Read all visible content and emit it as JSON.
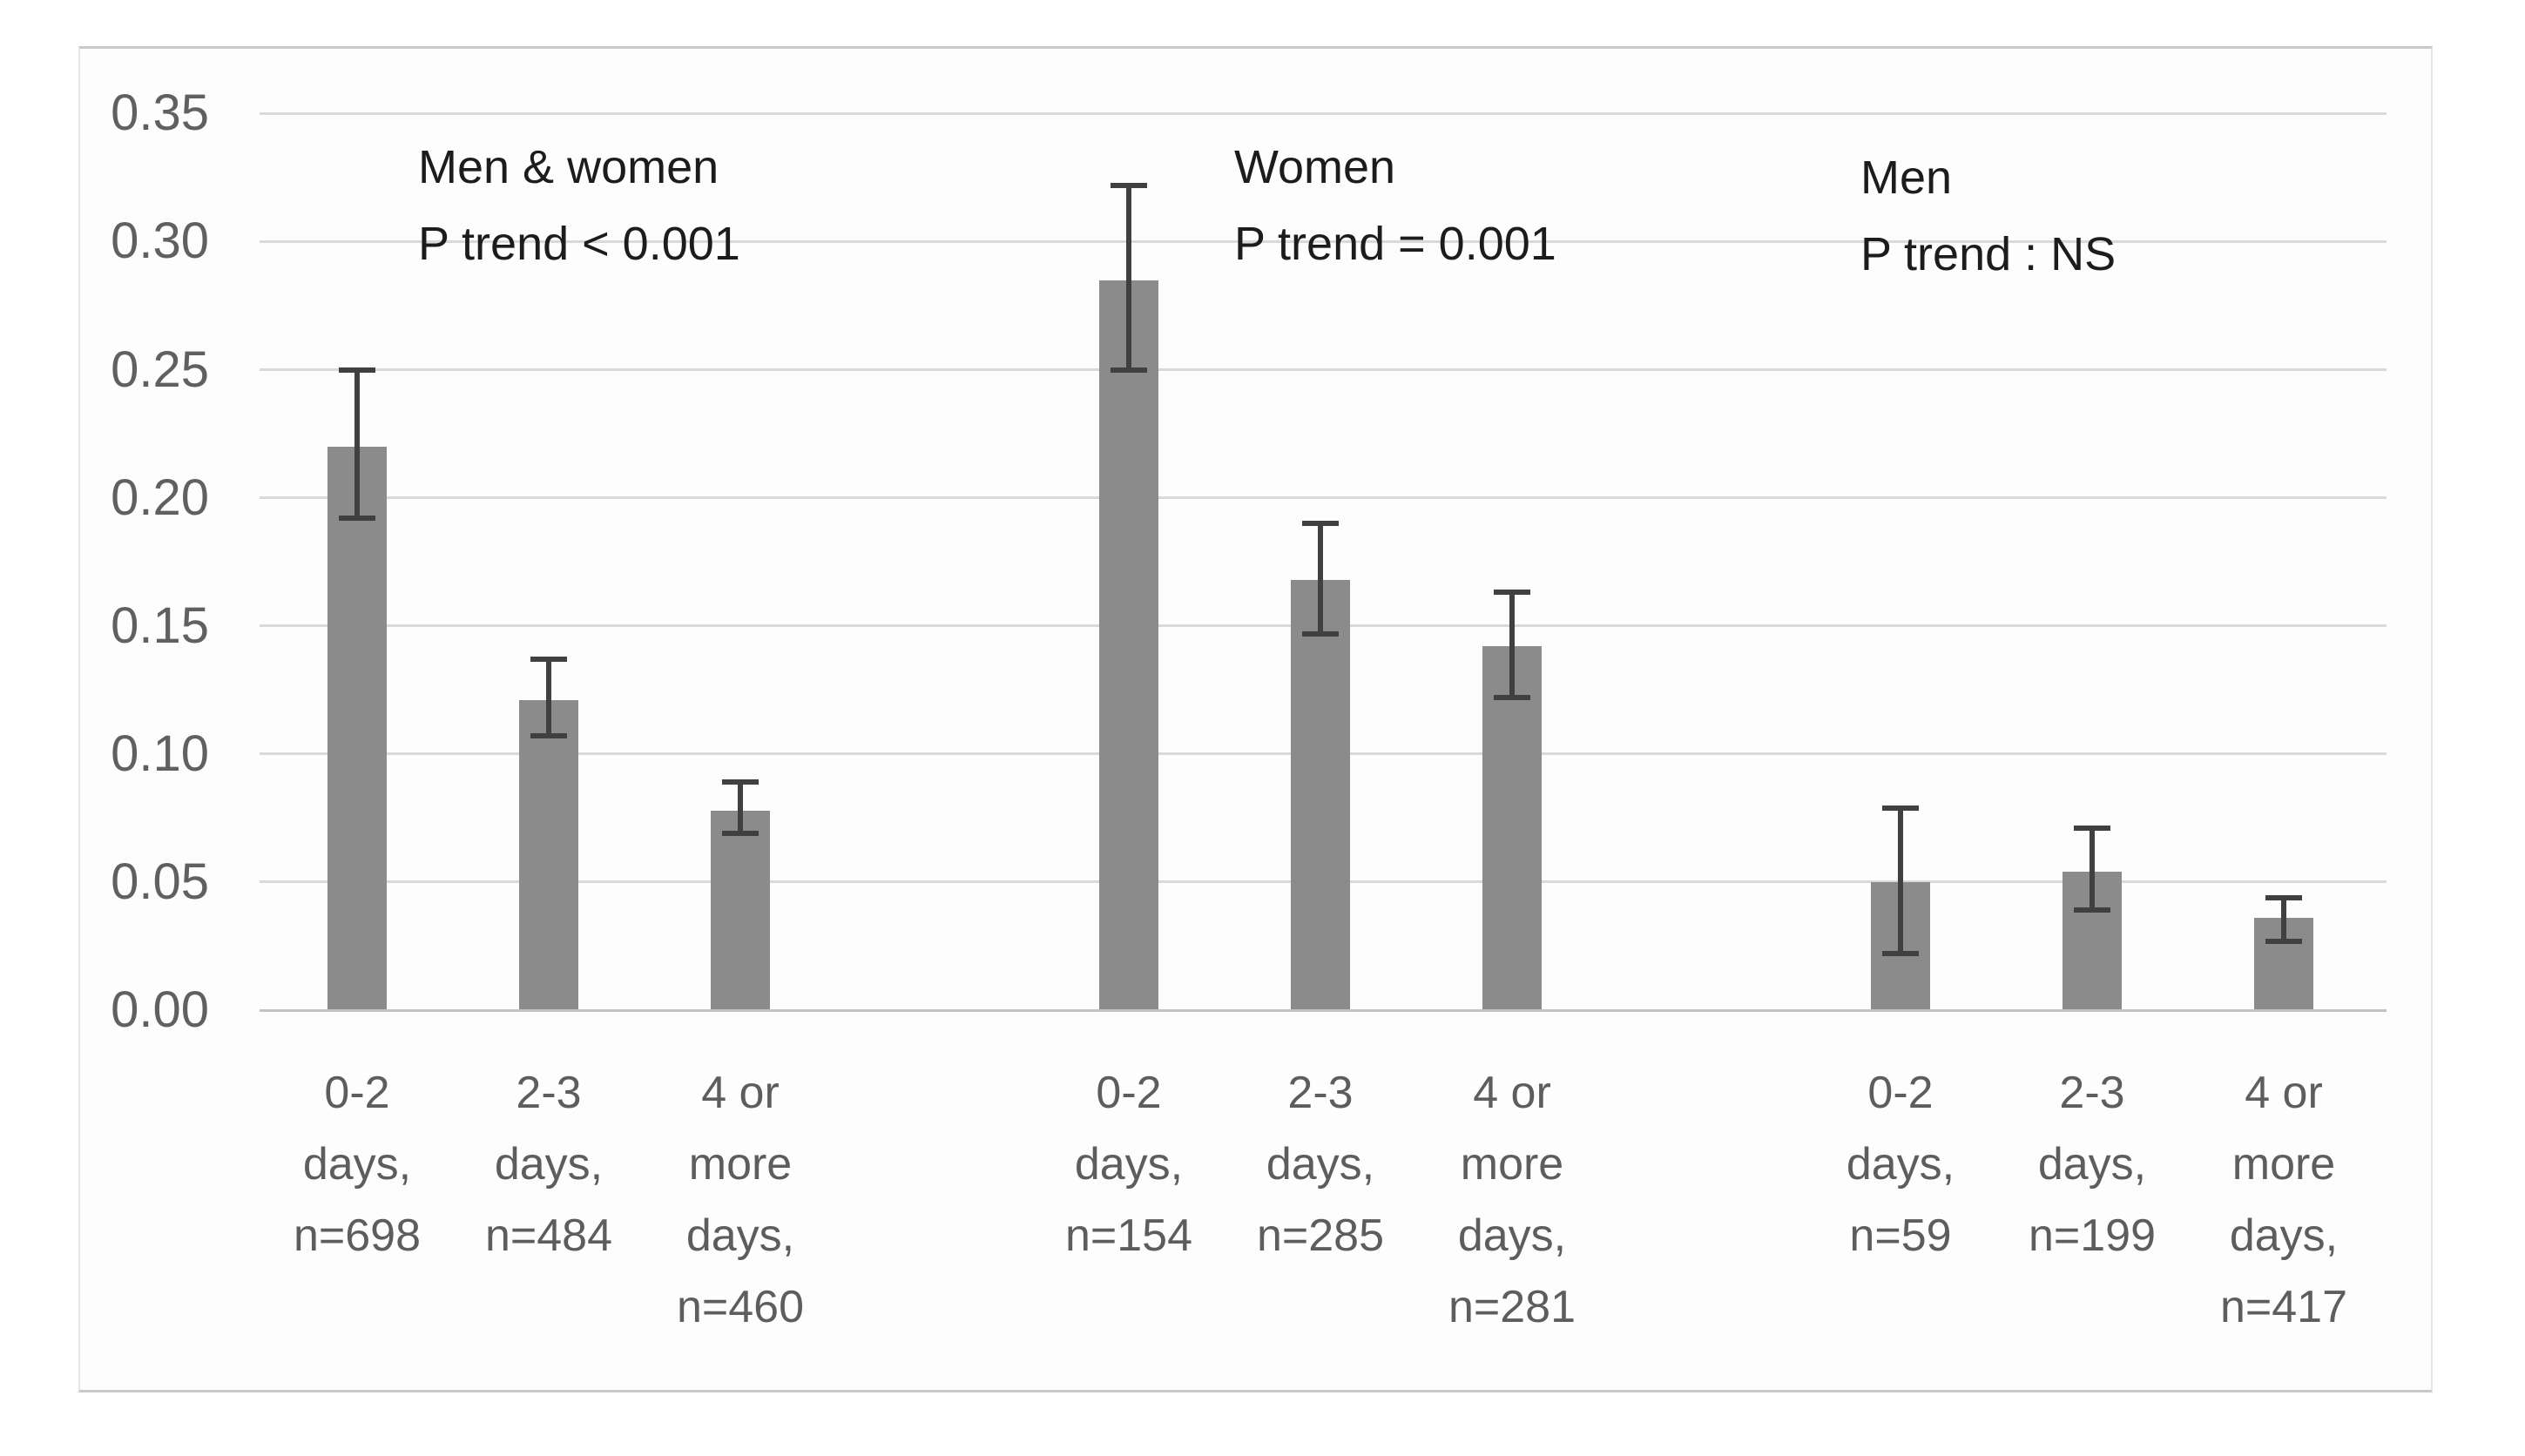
{
  "figure": {
    "bar_color": "#8b8b8b",
    "error_bar_color": "#404040",
    "gridline_color": "#d9d9d9",
    "axis_line_color": "#c2c2c2",
    "tick_label_color": "#5d5d5d",
    "annotation_color": "#1c1c1c"
  },
  "chart_data": {
    "type": "bar",
    "title": "",
    "xlabel": "",
    "ylabel": "",
    "ylim": [
      0,
      0.35
    ],
    "ytick_step": 0.05,
    "ytick_labels": [
      "0.00",
      "0.05",
      "0.10",
      "0.15",
      "0.20",
      "0.25",
      "0.30",
      "0.35"
    ],
    "grid": "horizontal-only",
    "legend": "none",
    "error_bars": true,
    "groups": [
      {
        "name": "Men & women",
        "p_trend": "P trend < 0.001",
        "bars": [
          {
            "label_lines": [
              "0-2",
              "days,",
              "n=698"
            ],
            "n": 698,
            "value": 0.22,
            "err_low": 0.192,
            "err_high": 0.25
          },
          {
            "label_lines": [
              "2-3",
              "days,",
              "n=484"
            ],
            "n": 484,
            "value": 0.121,
            "err_low": 0.107,
            "err_high": 0.137
          },
          {
            "label_lines": [
              "4 or",
              "more",
              "days,",
              "n=460"
            ],
            "n": 460,
            "value": 0.078,
            "err_low": 0.069,
            "err_high": 0.089
          }
        ]
      },
      {
        "name": "Women",
        "p_trend": "P trend = 0.001",
        "bars": [
          {
            "label_lines": [
              "0-2",
              "days,",
              "n=154"
            ],
            "n": 154,
            "value": 0.285,
            "err_low": 0.25,
            "err_high": 0.322
          },
          {
            "label_lines": [
              "2-3",
              "days,",
              "n=285"
            ],
            "n": 285,
            "value": 0.168,
            "err_low": 0.147,
            "err_high": 0.19
          },
          {
            "label_lines": [
              "4 or",
              "more",
              "days,",
              "n=281"
            ],
            "n": 281,
            "value": 0.142,
            "err_low": 0.122,
            "err_high": 0.163
          }
        ]
      },
      {
        "name": "Men",
        "p_trend": "P trend : NS",
        "bars": [
          {
            "label_lines": [
              "0-2",
              "days,",
              "n=59"
            ],
            "n": 59,
            "value": 0.05,
            "err_low": 0.022,
            "err_high": 0.079
          },
          {
            "label_lines": [
              "2-3",
              "days,",
              "n=199"
            ],
            "n": 199,
            "value": 0.054,
            "err_low": 0.039,
            "err_high": 0.071
          },
          {
            "label_lines": [
              "4 or",
              "more",
              "days,",
              "n=417"
            ],
            "n": 417,
            "value": 0.036,
            "err_low": 0.027,
            "err_high": 0.044
          }
        ]
      }
    ]
  }
}
